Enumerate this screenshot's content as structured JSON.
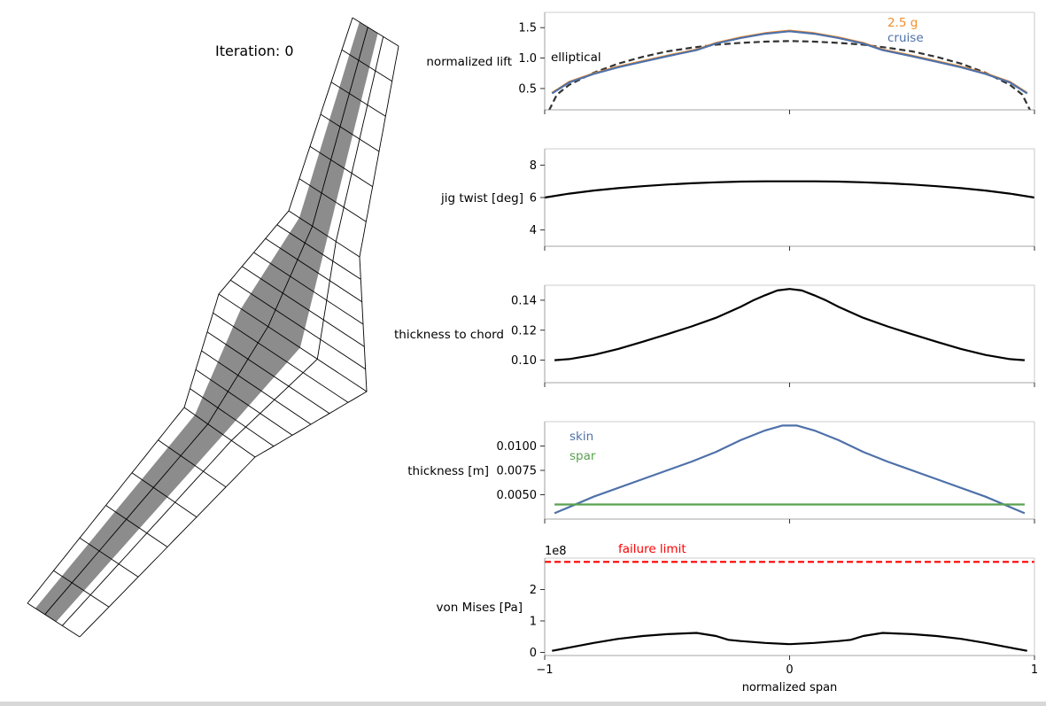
{
  "figure": {
    "iteration_label": "Iteration: 0",
    "shared_xlabel": "normalized span",
    "shared_xticks": [
      "−1",
      "0",
      "1"
    ],
    "wing_mesh": {
      "description_free": true,
      "fill_color": "#8c8c8c",
      "mesh_color": "#000000"
    }
  },
  "chart_data": [
    {
      "type": "line",
      "ylabel": "normalized lift",
      "xlim": [
        -1,
        1
      ],
      "ylim": [
        0.15,
        1.75
      ],
      "yticks": [
        0.5,
        1.0,
        1.5
      ],
      "ytick_labels": [
        "0.5",
        "1.0",
        "1.5"
      ],
      "series": [
        {
          "name": "elliptical",
          "color": "#333333",
          "dashed": true,
          "x": [
            -1.0,
            -0.95,
            -0.9,
            -0.8,
            -0.7,
            -0.6,
            -0.5,
            -0.4,
            -0.3,
            -0.2,
            -0.1,
            0,
            0.1,
            0.2,
            0.3,
            0.4,
            0.5,
            0.6,
            0.7,
            0.8,
            0.9,
            0.95,
            1.0
          ],
          "y": [
            0.0,
            0.4,
            0.56,
            0.76,
            0.91,
            1.02,
            1.11,
            1.17,
            1.22,
            1.25,
            1.27,
            1.28,
            1.27,
            1.25,
            1.22,
            1.17,
            1.11,
            1.02,
            0.91,
            0.76,
            0.56,
            0.4,
            0.0
          ]
        },
        {
          "name": "2.5 g",
          "color": "#f28e2b",
          "dashed": false,
          "x": [
            -0.97,
            -0.9,
            -0.8,
            -0.7,
            -0.6,
            -0.5,
            -0.38,
            -0.3,
            -0.2,
            -0.1,
            0,
            0.1,
            0.2,
            0.3,
            0.38,
            0.5,
            0.6,
            0.7,
            0.8,
            0.9,
            0.97
          ],
          "y": [
            0.43,
            0.61,
            0.75,
            0.86,
            0.95,
            1.04,
            1.14,
            1.25,
            1.34,
            1.41,
            1.45,
            1.41,
            1.34,
            1.25,
            1.14,
            1.04,
            0.95,
            0.86,
            0.75,
            0.61,
            0.43
          ]
        },
        {
          "name": "cruise",
          "color": "#4e71a9",
          "dashed": false,
          "x": [
            -0.97,
            -0.9,
            -0.8,
            -0.7,
            -0.6,
            -0.5,
            -0.38,
            -0.3,
            -0.2,
            -0.1,
            0,
            0.1,
            0.2,
            0.3,
            0.38,
            0.5,
            0.6,
            0.7,
            0.8,
            0.9,
            0.97
          ],
          "y": [
            0.42,
            0.6,
            0.74,
            0.85,
            0.94,
            1.03,
            1.13,
            1.24,
            1.33,
            1.4,
            1.44,
            1.4,
            1.33,
            1.24,
            1.13,
            1.03,
            0.94,
            0.85,
            0.74,
            0.6,
            0.42
          ]
        }
      ],
      "annotations": [
        {
          "text": "2.5 g",
          "color": "#f28e2b"
        },
        {
          "text": "cruise",
          "color": "#4e71a9"
        },
        {
          "text": "elliptical",
          "color": "#000000"
        }
      ]
    },
    {
      "type": "line",
      "ylabel": "jig twist [deg]",
      "xlim": [
        -1,
        1
      ],
      "ylim": [
        3,
        9
      ],
      "yticks": [
        4,
        6,
        8
      ],
      "ytick_labels": [
        "4",
        "6",
        "8"
      ],
      "series": [
        {
          "color": "#000000",
          "dashed": false,
          "x": [
            -1.0,
            -0.9,
            -0.8,
            -0.7,
            -0.6,
            -0.5,
            -0.4,
            -0.3,
            -0.2,
            -0.1,
            0,
            0.1,
            0.2,
            0.3,
            0.4,
            0.5,
            0.6,
            0.7,
            0.8,
            0.9,
            1.0
          ],
          "y": [
            6.0,
            6.24,
            6.43,
            6.58,
            6.7,
            6.8,
            6.88,
            6.94,
            6.98,
            7.0,
            7.0,
            7.0,
            6.98,
            6.94,
            6.88,
            6.8,
            6.7,
            6.58,
            6.43,
            6.24,
            6.0
          ]
        }
      ]
    },
    {
      "type": "line",
      "ylabel": "thickness to chord",
      "xlim": [
        -1,
        1
      ],
      "ylim": [
        0.085,
        0.15
      ],
      "yticks": [
        0.1,
        0.12,
        0.14
      ],
      "ytick_labels": [
        "0.10",
        "0.12",
        "0.14"
      ],
      "series": [
        {
          "color": "#000000",
          "dashed": false,
          "x": [
            -0.96,
            -0.9,
            -0.8,
            -0.7,
            -0.6,
            -0.5,
            -0.4,
            -0.3,
            -0.2,
            -0.15,
            -0.1,
            -0.05,
            0,
            0.05,
            0.1,
            0.15,
            0.2,
            0.3,
            0.4,
            0.5,
            0.6,
            0.7,
            0.8,
            0.9,
            0.96
          ],
          "y": [
            0.1,
            0.1007,
            0.1035,
            0.1075,
            0.1123,
            0.1173,
            0.1225,
            0.1283,
            0.1356,
            0.1398,
            0.1433,
            0.1465,
            0.1475,
            0.1465,
            0.1433,
            0.1398,
            0.1356,
            0.1283,
            0.1225,
            0.1173,
            0.1123,
            0.1075,
            0.1035,
            0.1007,
            0.1
          ]
        }
      ]
    },
    {
      "type": "line",
      "ylabel": "thickness [m]",
      "xlim": [
        -1,
        1
      ],
      "ylim": [
        0.0025,
        0.0125
      ],
      "yticks": [
        0.005,
        0.0075,
        0.01
      ],
      "ytick_labels": [
        "0.0050",
        "0.0075",
        "0.0100"
      ],
      "series": [
        {
          "name": "skin",
          "color": "#4e71a9",
          "dashed": false,
          "x": [
            -0.96,
            -0.8,
            -0.6,
            -0.4,
            -0.3,
            -0.2,
            -0.1,
            -0.03,
            0.03,
            0.1,
            0.2,
            0.3,
            0.4,
            0.6,
            0.8,
            0.96
          ],
          "y": [
            0.0031,
            0.0048,
            0.0066,
            0.0084,
            0.0094,
            0.0106,
            0.0116,
            0.0121,
            0.0121,
            0.0116,
            0.0106,
            0.0094,
            0.0084,
            0.0066,
            0.0048,
            0.0031
          ]
        },
        {
          "name": "spar",
          "color": "#59a14f",
          "dashed": false,
          "x": [
            -0.96,
            0.96
          ],
          "y": [
            0.004,
            0.004
          ]
        }
      ],
      "annotations": [
        {
          "text": "skin",
          "color": "#4e71a9"
        },
        {
          "text": "spar",
          "color": "#59a14f"
        }
      ]
    },
    {
      "type": "line",
      "ylabel": "von Mises [Pa]",
      "offset_text": "1e8",
      "xlim": [
        -1,
        1
      ],
      "ylim": [
        -0.1,
        3.0
      ],
      "yticks": [
        0,
        1,
        2
      ],
      "ytick_labels": [
        "0",
        "1",
        "2"
      ],
      "series": [
        {
          "name": "failure limit",
          "color": "#ff0000",
          "dashed": true,
          "x": [
            -1,
            1
          ],
          "y": [
            2.88,
            2.88
          ]
        },
        {
          "color": "#000000",
          "dashed": false,
          "x": [
            -0.97,
            -0.9,
            -0.8,
            -0.7,
            -0.6,
            -0.5,
            -0.38,
            -0.3,
            -0.25,
            -0.2,
            -0.1,
            0,
            0.1,
            0.2,
            0.25,
            0.3,
            0.38,
            0.5,
            0.6,
            0.7,
            0.8,
            0.9,
            0.97
          ],
          "y": [
            0.05,
            0.15,
            0.3,
            0.43,
            0.52,
            0.58,
            0.62,
            0.52,
            0.4,
            0.36,
            0.3,
            0.26,
            0.3,
            0.36,
            0.4,
            0.52,
            0.62,
            0.58,
            0.52,
            0.43,
            0.3,
            0.15,
            0.05
          ]
        }
      ],
      "annotations": [
        {
          "text": "failure limit",
          "color": "#ff0000"
        }
      ]
    }
  ]
}
